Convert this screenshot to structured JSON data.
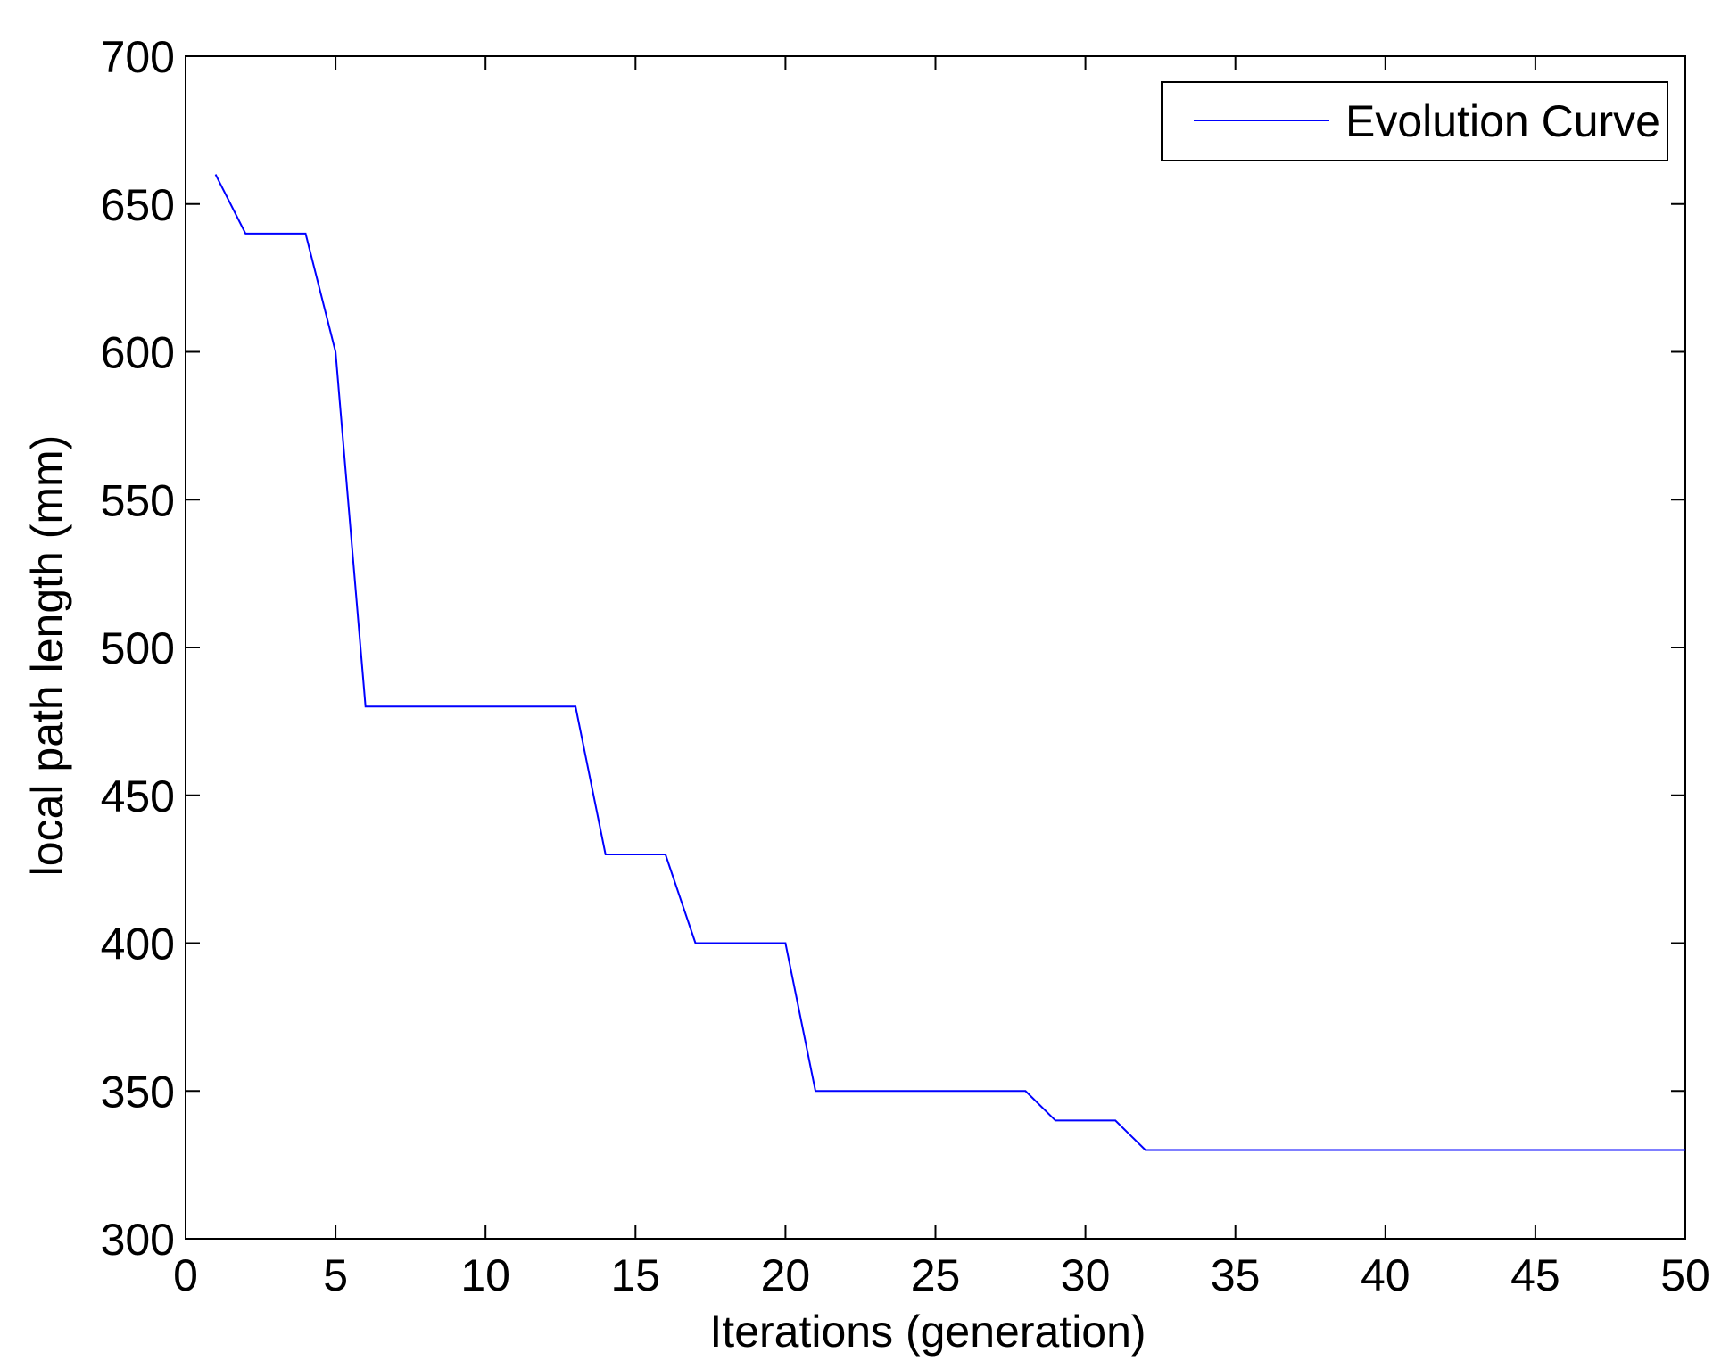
{
  "chart_data": {
    "type": "line",
    "title": "",
    "xlabel": "Iterations (generation)",
    "ylabel": "local path length (mm)",
    "xlim": [
      0,
      50
    ],
    "ylim": [
      300,
      700
    ],
    "xticks": [
      0,
      5,
      10,
      15,
      20,
      25,
      30,
      35,
      40,
      45,
      50
    ],
    "yticks": [
      300,
      350,
      400,
      450,
      500,
      550,
      600,
      650,
      700
    ],
    "grid": false,
    "legend": {
      "position": "top-right",
      "entries": [
        "Evolution Curve"
      ]
    },
    "series": [
      {
        "name": "Evolution Curve",
        "color": "#0000ff",
        "x": [
          1,
          2,
          3,
          4,
          5,
          6,
          7,
          8,
          9,
          10,
          11,
          12,
          13,
          14,
          15,
          16,
          17,
          18,
          19,
          20,
          21,
          22,
          23,
          24,
          25,
          26,
          27,
          28,
          29,
          30,
          31,
          32,
          33,
          34,
          35,
          36,
          37,
          38,
          39,
          40,
          41,
          42,
          43,
          44,
          45,
          46,
          47,
          48,
          49,
          50
        ],
        "y": [
          660,
          640,
          640,
          640,
          600,
          480,
          480,
          480,
          480,
          480,
          480,
          480,
          480,
          430,
          430,
          430,
          400,
          400,
          400,
          400,
          350,
          350,
          350,
          350,
          350,
          350,
          350,
          350,
          340,
          340,
          340,
          330,
          330,
          330,
          330,
          330,
          330,
          330,
          330,
          330,
          330,
          330,
          330,
          330,
          330,
          330,
          330,
          330,
          330,
          330
        ]
      }
    ]
  }
}
